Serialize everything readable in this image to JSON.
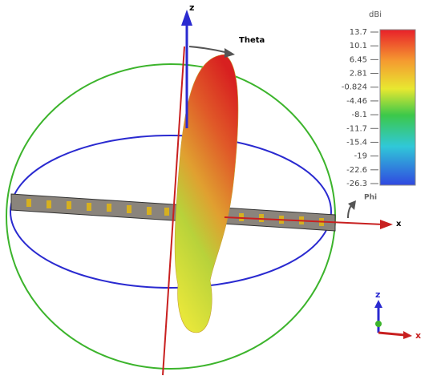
{
  "scene": {
    "axis_z": "z",
    "theta": "Theta",
    "axis_x": "x",
    "phi": "Phi"
  },
  "colorbar": {
    "unit": "dBi",
    "ticks": [
      13.7,
      10.1,
      6.45,
      2.81,
      -0.824,
      -4.46,
      -8.1,
      -11.7,
      -15.4,
      -19,
      -22.6,
      -26.3
    ]
  },
  "triad": {
    "z": "z",
    "x": "x"
  }
}
